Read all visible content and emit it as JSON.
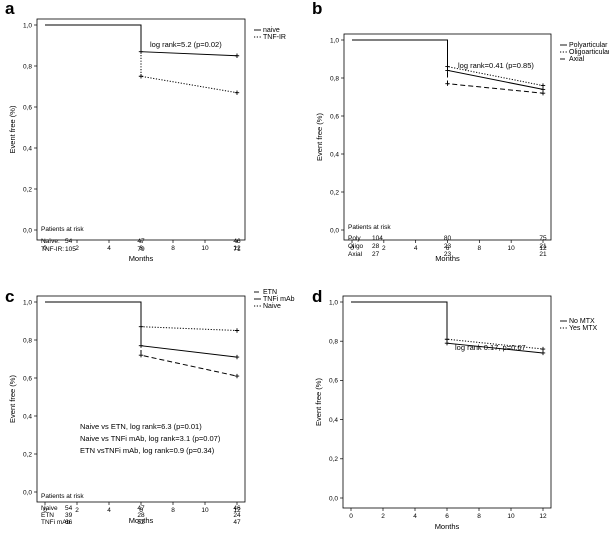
{
  "chart_data": [
    {
      "type": "line",
      "panel_label": "a",
      "xlabel": "Months",
      "ylabel": "Event free (%)",
      "xlim": [
        0,
        12
      ],
      "ylim": [
        0,
        1
      ],
      "x_ticks": [
        "0",
        "2",
        "4",
        "6",
        "8",
        "10",
        "12"
      ],
      "y_ticks": [
        "0,0",
        "0,2",
        "0,4",
        "0,6",
        "0,8",
        "1,0"
      ],
      "series": [
        {
          "name": "naive",
          "style": "solid",
          "x": [
            0,
            6,
            6,
            12
          ],
          "y": [
            1.0,
            1.0,
            0.87,
            0.85
          ]
        },
        {
          "name": "TNF-IR",
          "style": "dotted",
          "x": [
            0,
            6,
            6,
            12
          ],
          "y": [
            1.0,
            1.0,
            0.75,
            0.67
          ]
        }
      ],
      "annotations": [
        "log rank=5.2 (p=0.02)"
      ],
      "at_risk": {
        "title": "Patients at risk",
        "timepoints": [
          0,
          6,
          12
        ],
        "rows": [
          {
            "label": "Naïve:",
            "values": [
              "54",
              "47",
              "46"
            ]
          },
          {
            "label": "TNF-IR:",
            "values": [
              "105",
              "79",
              "71"
            ]
          }
        ]
      }
    },
    {
      "type": "line",
      "panel_label": "b",
      "xlabel": "Months",
      "ylabel": "Event free (%)",
      "xlim": [
        0,
        12
      ],
      "ylim": [
        0,
        1
      ],
      "x_ticks": [
        "0",
        "2",
        "4",
        "6",
        "8",
        "10",
        "12"
      ],
      "y_ticks": [
        "0,0",
        "0,2",
        "0,4",
        "0,6",
        "0,8",
        "1,0"
      ],
      "series": [
        {
          "name": "Polyarticular",
          "style": "solid",
          "x": [
            0,
            6,
            6,
            12
          ],
          "y": [
            1.0,
            1.0,
            0.84,
            0.74
          ]
        },
        {
          "name": "Oligoarticular",
          "style": "dotted",
          "x": [
            0,
            6,
            6,
            12
          ],
          "y": [
            1.0,
            1.0,
            0.86,
            0.76
          ]
        },
        {
          "name": "Axial",
          "style": "dashed",
          "x": [
            0,
            6,
            6,
            12
          ],
          "y": [
            1.0,
            1.0,
            0.77,
            0.72
          ]
        }
      ],
      "annotations": [
        "log rank=0.41 (p=0.85)"
      ],
      "at_risk": {
        "title": "Patients at risk",
        "timepoints": [
          0,
          6,
          12
        ],
        "rows": [
          {
            "label": "Poly",
            "values": [
              "104",
              "80",
              "75"
            ]
          },
          {
            "label": "Oligo",
            "values": [
              "28",
              "23",
              "21"
            ]
          },
          {
            "label": "Axial",
            "values": [
              "27",
              "23",
              "21"
            ]
          }
        ]
      }
    },
    {
      "type": "line",
      "panel_label": "c",
      "xlabel": "Months",
      "ylabel": "Event free (%)",
      "xlim": [
        0,
        12
      ],
      "ylim": [
        0,
        1
      ],
      "x_ticks": [
        "0",
        "2",
        "4",
        "6",
        "8",
        "10",
        "12"
      ],
      "y_ticks": [
        "0,0",
        "0,2",
        "0,4",
        "0,6",
        "0,8",
        "1,0"
      ],
      "series": [
        {
          "name": "ETN",
          "style": "dashed",
          "x": [
            0,
            6,
            6,
            12
          ],
          "y": [
            1.0,
            1.0,
            0.72,
            0.61
          ]
        },
        {
          "name": "TNFi mAb",
          "style": "solid",
          "x": [
            0,
            6,
            6,
            12
          ],
          "y": [
            1.0,
            1.0,
            0.77,
            0.71
          ]
        },
        {
          "name": "Naive",
          "style": "dotted",
          "x": [
            0,
            6,
            6,
            12
          ],
          "y": [
            1.0,
            1.0,
            0.87,
            0.85
          ]
        }
      ],
      "annotations": [
        "Naive vs ETN, log rank=6.3 (p=0.01)",
        "Naive vs TNFi mAb, log rank=3.1 (p=0.07)",
        "ETN vsTNFi mAb, log rank=0.9 (p=0.34)"
      ],
      "at_risk": {
        "title": "Patients at risk",
        "timepoints": [
          0,
          6,
          12
        ],
        "rows": [
          {
            "label": "Naive",
            "values": [
              "54",
              "47",
              "46"
            ]
          },
          {
            "label": "ETN",
            "values": [
              "39",
              "28",
              "24"
            ]
          },
          {
            "label": "TNFi mAb",
            "values": [
              "66",
              "52",
              "47"
            ]
          }
        ]
      }
    },
    {
      "type": "line",
      "panel_label": "d",
      "xlabel": "Months",
      "ylabel": "Event free (%)",
      "xlim": [
        0,
        12
      ],
      "ylim": [
        0,
        1
      ],
      "x_ticks": [
        "0",
        "2",
        "4",
        "6",
        "8",
        "10",
        "12"
      ],
      "y_ticks": [
        "0,0",
        "0,2",
        "0,4",
        "0,6",
        "0,8",
        "1,0"
      ],
      "series": [
        {
          "name": "No  MTX",
          "style": "solid",
          "x": [
            0,
            6,
            6,
            12
          ],
          "y": [
            1.0,
            1.0,
            0.79,
            0.74
          ]
        },
        {
          "name": "Yes MTX",
          "style": "dotted",
          "x": [
            0,
            6,
            6,
            12
          ],
          "y": [
            1.0,
            1.0,
            0.81,
            0.76
          ]
        }
      ],
      "annotations": [
        "log rank 0.17, p=0.67"
      ],
      "at_risk": null
    }
  ]
}
